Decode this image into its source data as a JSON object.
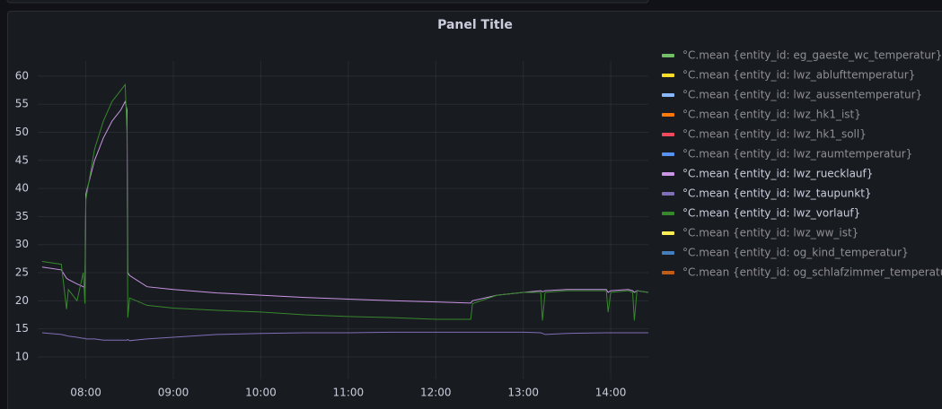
{
  "chart_data": {
    "type": "line",
    "title": "Panel Title",
    "x": [
      7.5,
      7.72,
      7.78,
      7.8,
      7.9,
      7.97,
      7.99,
      8.0,
      8.1,
      8.2,
      8.3,
      8.4,
      8.45,
      8.47,
      8.48,
      8.5,
      8.7,
      9.0,
      9.5,
      10.0,
      10.5,
      11.0,
      11.5,
      12.0,
      12.4,
      12.42,
      12.7,
      13.0,
      13.2,
      13.22,
      13.25,
      13.5,
      13.95,
      13.97,
      14.0,
      14.2,
      14.25,
      14.27,
      14.3,
      14.43
    ],
    "xlim": [
      7.45,
      14.43
    ],
    "xticks": [
      {
        "value": 8,
        "label": "08:00"
      },
      {
        "value": 9,
        "label": "09:00"
      },
      {
        "value": 10,
        "label": "10:00"
      },
      {
        "value": 11,
        "label": "11:00"
      },
      {
        "value": 12,
        "label": "12:00"
      },
      {
        "value": 13,
        "label": "13:00"
      },
      {
        "value": 14,
        "label": "14:00"
      }
    ],
    "ylim": [
      6,
      62.7
    ],
    "yticks": [
      10,
      15,
      20,
      25,
      30,
      35,
      40,
      45,
      50,
      55,
      60
    ],
    "grid": true,
    "legend": "right",
    "series": [
      {
        "name": "°C.mean {entity_id: eg_gaeste_wc_temperatur}",
        "color": "#73bf69",
        "values": [
          null,
          null,
          null,
          null,
          null,
          null,
          null,
          null,
          null,
          null,
          null,
          null,
          null,
          null,
          null,
          null,
          null,
          null,
          null,
          null,
          null,
          null,
          null,
          null,
          null,
          null,
          null,
          null,
          null,
          null,
          null,
          null,
          null,
          null,
          null,
          null,
          null,
          null,
          null,
          null
        ]
      },
      {
        "name": "°C.mean {entity_id: lwz_ablufttemperatur}",
        "color": "#fade2a",
        "values": [
          null,
          null,
          null,
          null,
          null,
          null,
          null,
          null,
          null,
          null,
          null,
          null,
          null,
          null,
          null,
          null,
          null,
          null,
          null,
          null,
          null,
          null,
          null,
          null,
          null,
          null,
          null,
          null,
          null,
          null,
          null,
          null,
          null,
          null,
          null,
          null,
          null,
          null,
          null,
          null
        ]
      },
      {
        "name": "°C.mean {entity_id: lwz_aussentemperatur}",
        "color": "#8ab8ff",
        "values": [
          null,
          null,
          null,
          null,
          null,
          null,
          null,
          null,
          null,
          null,
          null,
          null,
          null,
          null,
          null,
          null,
          null,
          null,
          null,
          null,
          null,
          null,
          null,
          null,
          null,
          null,
          null,
          null,
          null,
          null,
          null,
          null,
          null,
          null,
          null,
          null,
          null,
          null,
          null,
          null
        ]
      },
      {
        "name": "°C.mean {entity_id: lwz_hk1_ist}",
        "color": "#ff780a",
        "values": [
          null,
          null,
          null,
          null,
          null,
          null,
          null,
          null,
          null,
          null,
          null,
          null,
          null,
          null,
          null,
          null,
          null,
          null,
          null,
          null,
          null,
          null,
          null,
          null,
          null,
          null,
          null,
          null,
          null,
          null,
          null,
          null,
          null,
          null,
          null,
          null,
          null,
          null,
          null,
          null
        ]
      },
      {
        "name": "°C.mean {entity_id: lwz_hk1_soll}",
        "color": "#f2495c",
        "values": [
          null,
          null,
          null,
          null,
          null,
          null,
          null,
          null,
          null,
          null,
          null,
          null,
          null,
          null,
          null,
          null,
          null,
          null,
          null,
          null,
          null,
          null,
          null,
          null,
          null,
          null,
          null,
          null,
          null,
          null,
          null,
          null,
          null,
          null,
          null,
          null,
          null,
          null,
          null,
          null
        ]
      },
      {
        "name": "°C.mean {entity_id: lwz_raumtemperatur}",
        "color": "#5794f2",
        "values": [
          null,
          null,
          null,
          null,
          null,
          null,
          null,
          null,
          null,
          null,
          null,
          null,
          null,
          null,
          null,
          null,
          null,
          null,
          null,
          null,
          null,
          null,
          null,
          null,
          null,
          null,
          null,
          null,
          null,
          null,
          null,
          null,
          null,
          null,
          null,
          null,
          null,
          null,
          null,
          null
        ]
      },
      {
        "name": "°C.mean {entity_id: lwz_ruecklauf}",
        "color": "#ca95e5",
        "values": [
          26,
          25.5,
          24,
          23.8,
          23,
          22.5,
          22.3,
          39,
          45,
          49,
          52,
          54,
          55.5,
          54,
          25,
          24.5,
          22.5,
          22,
          21.4,
          21,
          20.6,
          20.3,
          20,
          19.8,
          19.6,
          20,
          21,
          21.5,
          21.8,
          21.6,
          21.8,
          22,
          22,
          21.5,
          21.8,
          22,
          21.8,
          21.5,
          21.8,
          21.5
        ]
      },
      {
        "name": "°C.mean {entity_id: lwz_taupunkt}",
        "color": "#806eb7",
        "values": [
          14.3,
          14,
          13.8,
          13.7,
          13.5,
          13.3,
          13.3,
          13.2,
          13.2,
          13,
          13,
          13,
          13,
          13,
          13.1,
          12.9,
          13.2,
          13.5,
          14,
          14.2,
          14.3,
          14.3,
          14.4,
          14.4,
          14.4,
          14.4,
          14.4,
          14.4,
          14.3,
          14.2,
          14,
          14.2,
          14.3,
          14.3,
          14.3,
          14.3,
          14.3,
          14.3,
          14.3,
          14.3
        ]
      },
      {
        "name": "°C.mean {entity_id: lwz_vorlauf}",
        "color": "#37872d",
        "values": [
          27,
          26.5,
          18.5,
          22,
          20,
          25,
          19.5,
          38,
          47,
          52,
          55.5,
          57.5,
          58.5,
          50,
          17,
          20.5,
          19.2,
          18.7,
          18.3,
          18,
          17.5,
          17.2,
          17,
          16.7,
          16.7,
          19.5,
          21,
          21.5,
          21.5,
          16.5,
          21.5,
          21.8,
          21.8,
          18,
          21.5,
          21.8,
          21.5,
          16.5,
          21.8,
          21.5
        ]
      },
      {
        "name": "°C.mean {entity_id: lwz_ww_ist}",
        "color": "#ffee52",
        "values": [
          null,
          null,
          null,
          null,
          null,
          null,
          null,
          null,
          null,
          null,
          null,
          null,
          null,
          null,
          null,
          null,
          null,
          null,
          null,
          null,
          null,
          null,
          null,
          null,
          null,
          null,
          null,
          null,
          null,
          null,
          null,
          null,
          null,
          null,
          null,
          null,
          null,
          null,
          null,
          null
        ]
      },
      {
        "name": "°C.mean {entity_id: og_kind_temperatur}",
        "color": "#447ebc",
        "values": [
          null,
          null,
          null,
          null,
          null,
          null,
          null,
          null,
          null,
          null,
          null,
          null,
          null,
          null,
          null,
          null,
          null,
          null,
          null,
          null,
          null,
          null,
          null,
          null,
          null,
          null,
          null,
          null,
          null,
          null,
          null,
          null,
          null,
          null,
          null,
          null,
          null,
          null,
          null,
          null
        ]
      },
      {
        "name": "°C.mean {entity_id: og_schlafzimmer_temperatur}",
        "color": "#c15c17",
        "values": [
          null,
          null,
          null,
          null,
          null,
          null,
          null,
          null,
          null,
          null,
          null,
          null,
          null,
          null,
          null,
          null,
          null,
          null,
          null,
          null,
          null,
          null,
          null,
          null,
          null,
          null,
          null,
          null,
          null,
          null,
          null,
          null,
          null,
          null,
          null,
          null,
          null,
          null,
          null,
          null
        ]
      }
    ]
  }
}
